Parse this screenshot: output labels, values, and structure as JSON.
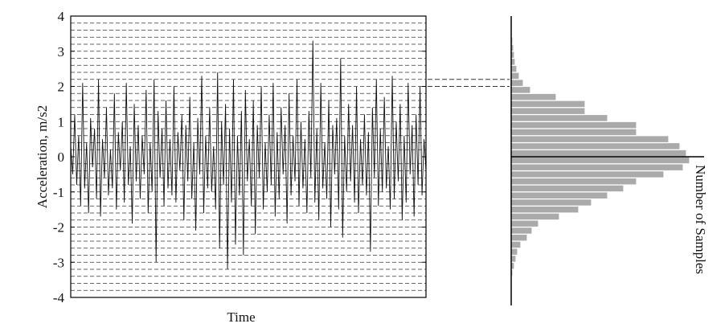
{
  "chart_data": [
    {
      "type": "line",
      "ylabel": "Acceleration, m/s2",
      "xlabel": "Time",
      "color": "#111111",
      "ylim": [
        -4,
        4
      ],
      "yticks": [
        -4,
        -3,
        -2,
        -1,
        0,
        1,
        2,
        3,
        4
      ],
      "yminor": [
        -3.8,
        -3.6,
        -3.4,
        -3.2,
        -3.0,
        -2.8,
        -2.6,
        -2.4,
        -2.2,
        -2.0,
        -1.8,
        -1.6,
        -1.4,
        -1.2,
        -1.0,
        -0.8,
        -0.6,
        -0.4,
        -0.2,
        0.2,
        0.4,
        0.6,
        0.8,
        1.0,
        1.2,
        1.4,
        1.6,
        1.8,
        2.0,
        2.2,
        2.4,
        2.6,
        2.8,
        3.0,
        3.2,
        3.4,
        3.6,
        3.8
      ],
      "grid": true,
      "values": [
        0.3,
        -0.5,
        1.2,
        -0.8,
        0.6,
        -1.4,
        2.1,
        -0.9,
        0.4,
        -1.6,
        1.1,
        -0.3,
        0.8,
        -1.2,
        2.2,
        -1.7,
        0.5,
        -0.6,
        1.4,
        -1.1,
        0.2,
        -0.9,
        1.8,
        -1.5,
        0.7,
        -0.4,
        1.0,
        -1.3,
        2.1,
        -0.8,
        0.3,
        -1.9,
        1.5,
        -0.7,
        0.9,
        -1.2,
        0.6,
        -0.5,
        1.9,
        -1.6,
        0.4,
        -1.0,
        2.2,
        -3.0,
        1.3,
        -0.6,
        0.8,
        -1.4,
        1.6,
        -0.9,
        0.5,
        -1.1,
        2.0,
        -1.3,
        0.7,
        -0.4,
        1.2,
        -1.8,
        0.9,
        -0.7,
        1.7,
        -1.2,
        0.4,
        -2.1,
        1.1,
        -0.5,
        2.3,
        -1.6,
        0.6,
        -0.9,
        1.4,
        -1.0,
        0.3,
        -1.5,
        2.4,
        -2.6,
        1.0,
        -0.8,
        1.5,
        -3.2,
        0.8,
        -1.3,
        2.2,
        -2.5,
        0.6,
        -1.1,
        1.3,
        -2.8,
        1.9,
        -0.7,
        0.5,
        -1.4,
        1.6,
        -2.2,
        0.9,
        -0.6,
        2.0,
        -1.5,
        0.4,
        -1.0,
        1.2,
        -0.8,
        2.1,
        -1.7,
        0.7,
        -1.2,
        1.4,
        -0.5,
        0.9,
        -1.9,
        1.8,
        -1.1,
        0.6,
        -0.7,
        2.2,
        -1.4,
        1.0,
        -0.9,
        0.5,
        -1.6,
        1.3,
        -0.6,
        3.3,
        -1.3,
        0.8,
        -1.8,
        2.1,
        -0.9,
        0.4,
        -1.2,
        1.6,
        -2.0,
        0.9,
        -0.5,
        1.1,
        -1.5,
        2.8,
        -2.3,
        0.6,
        -1.0,
        1.5,
        -0.7,
        0.9,
        -1.3,
        2.0,
        -1.6,
        0.5,
        -0.8,
        1.2,
        -1.1,
        0.7,
        -2.7,
        1.4,
        -0.6,
        2.2,
        -1.4,
        0.8,
        -1.0,
        1.7,
        -0.9,
        0.3,
        -1.5,
        2.3,
        -1.2,
        1.0,
        -0.7,
        1.5,
        -1.8,
        0.6,
        -1.3,
        2.1,
        -0.5,
        0.9,
        -1.7,
        1.2,
        -0.8,
        2.0,
        -1.1,
        0.5,
        -0.4
      ]
    },
    {
      "type": "histogram",
      "orientation": "horizontal",
      "xlabel": "Number of Samples",
      "color": "#aaaaaa",
      "ylim": [
        -4,
        4
      ],
      "xlim": [
        0,
        240
      ],
      "bins": [
        -3.6,
        -3.4,
        -3.2,
        -3.0,
        -2.8,
        -2.6,
        -2.4,
        -2.2,
        -2.0,
        -1.8,
        -1.6,
        -1.4,
        -1.2,
        -1.0,
        -0.8,
        -0.6,
        -0.4,
        -0.2,
        0.0,
        0.2,
        0.4,
        0.6,
        0.8,
        1.0,
        1.2,
        1.4,
        1.6,
        1.8,
        2.0,
        2.2,
        2.4,
        2.6,
        2.8,
        3.0,
        3.2,
        3.4
      ],
      "values": [
        1,
        2,
        4,
        6,
        8,
        12,
        20,
        26,
        34,
        60,
        84,
        100,
        120,
        140,
        156,
        190,
        214,
        222,
        218,
        210,
        196,
        156,
        156,
        120,
        92,
        92,
        56,
        24,
        15,
        10,
        7,
        5,
        4,
        3,
        2
      ]
    }
  ]
}
